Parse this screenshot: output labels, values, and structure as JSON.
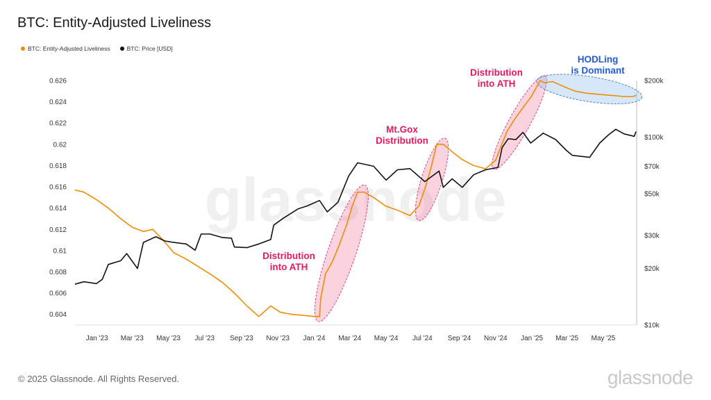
{
  "title": "BTC: Entity-Adjusted Liveliness",
  "legend": [
    {
      "label": "BTC: Entity-Adjusted Liveliness",
      "color": "#f08c00"
    },
    {
      "label": "BTC: Price [USD]",
      "color": "#111111"
    }
  ],
  "footer": {
    "copyright": "© 2025 Glassnode. All Rights Reserved.",
    "logo_text": "glassnode"
  },
  "watermark": "glassnode",
  "chart_data": {
    "type": "line",
    "x_tick_labels": [
      "Jan '23",
      "Mar '23",
      "May '23",
      "Jul '23",
      "Sep '23",
      "Nov '23",
      "Jan '24",
      "Mar '24",
      "May '24",
      "Jul '24",
      "Sep '24",
      "Nov '24",
      "Jan '25",
      "Mar '25",
      "May '25"
    ],
    "x_tick_dates": [
      "2023-01-01",
      "2023-03-01",
      "2023-05-01",
      "2023-07-01",
      "2023-09-01",
      "2023-11-01",
      "2024-01-01",
      "2024-03-01",
      "2024-05-01",
      "2024-07-01",
      "2024-09-01",
      "2024-11-01",
      "2025-01-01",
      "2025-03-01",
      "2025-05-01"
    ],
    "x_range": [
      "2022-11-25",
      "2025-06-25"
    ],
    "y_left": {
      "label": "",
      "ylim": [
        0.603,
        0.626
      ],
      "tick_values": [
        0.604,
        0.606,
        0.608,
        0.61,
        0.612,
        0.614,
        0.616,
        0.618,
        0.62,
        0.622,
        0.624,
        0.626
      ],
      "tick_labels": [
        "0.604",
        "0.606",
        "0.608",
        "0.61",
        "0.612",
        "0.614",
        "0.616",
        "0.618",
        "0.62",
        "0.622",
        "0.624",
        "0.626"
      ]
    },
    "y_right": {
      "label": "",
      "scale": "log",
      "ylim": [
        10000,
        200000
      ],
      "tick_values": [
        10000,
        20000,
        30000,
        50000,
        70000,
        100000,
        200000
      ],
      "tick_labels": [
        "$10k",
        "$20k",
        "$30k",
        "$50k",
        "$70k",
        "$100k",
        "$200k"
      ]
    },
    "series": [
      {
        "name": "BTC: Entity-Adjusted Liveliness",
        "axis": "left",
        "color": "#f08c00",
        "x": [
          "2022-11-25",
          "2022-12-10",
          "2022-12-31",
          "2023-01-20",
          "2023-02-10",
          "2023-03-01",
          "2023-03-20",
          "2023-04-05",
          "2023-04-25",
          "2023-05-10",
          "2023-05-31",
          "2023-06-20",
          "2023-07-10",
          "2023-07-31",
          "2023-08-20",
          "2023-09-10",
          "2023-09-30",
          "2023-10-20",
          "2023-11-05",
          "2023-11-25",
          "2023-12-15",
          "2024-01-01",
          "2024-01-10",
          "2024-01-12",
          "2024-01-20",
          "2024-02-01",
          "2024-02-12",
          "2024-02-25",
          "2024-03-05",
          "2024-03-14",
          "2024-03-25",
          "2024-04-10",
          "2024-04-30",
          "2024-05-20",
          "2024-06-10",
          "2024-06-25",
          "2024-07-05",
          "2024-07-15",
          "2024-07-25",
          "2024-08-05",
          "2024-08-20",
          "2024-09-05",
          "2024-09-25",
          "2024-10-15",
          "2024-11-01",
          "2024-11-10",
          "2024-11-20",
          "2024-12-01",
          "2024-12-15",
          "2024-12-31",
          "2025-01-15",
          "2025-01-22",
          "2025-02-05",
          "2025-02-25",
          "2025-03-15",
          "2025-04-05",
          "2025-04-25",
          "2025-05-15",
          "2025-06-05",
          "2025-06-20",
          "2025-06-25"
        ],
        "y": [
          0.6157,
          0.6155,
          0.6148,
          0.614,
          0.613,
          0.6122,
          0.6118,
          0.612,
          0.6108,
          0.6098,
          0.6092,
          0.6085,
          0.6078,
          0.607,
          0.606,
          0.6048,
          0.6038,
          0.6048,
          0.6042,
          0.604,
          0.6039,
          0.6038,
          0.6038,
          0.6055,
          0.6078,
          0.609,
          0.6105,
          0.6125,
          0.6142,
          0.6155,
          0.6155,
          0.615,
          0.6142,
          0.6138,
          0.6133,
          0.6142,
          0.6158,
          0.6177,
          0.62,
          0.62,
          0.6193,
          0.6186,
          0.618,
          0.6177,
          0.6185,
          0.6198,
          0.6212,
          0.6222,
          0.6233,
          0.6245,
          0.626,
          0.6258,
          0.6259,
          0.6254,
          0.625,
          0.6248,
          0.6247,
          0.6246,
          0.6245,
          0.6245,
          0.6246
        ]
      },
      {
        "name": "BTC: Price [USD]",
        "axis": "right",
        "color": "#111111",
        "x": [
          "2022-11-25",
          "2022-12-10",
          "2022-12-31",
          "2023-01-10",
          "2023-01-20",
          "2023-02-10",
          "2023-02-20",
          "2023-03-10",
          "2023-03-20",
          "2023-04-10",
          "2023-04-25",
          "2023-05-10",
          "2023-05-31",
          "2023-06-15",
          "2023-06-25",
          "2023-07-10",
          "2023-07-31",
          "2023-08-15",
          "2023-08-20",
          "2023-09-10",
          "2023-09-30",
          "2023-10-20",
          "2023-10-25",
          "2023-11-10",
          "2023-12-05",
          "2023-12-20",
          "2024-01-10",
          "2024-01-23",
          "2024-02-10",
          "2024-02-28",
          "2024-03-14",
          "2024-04-10",
          "2024-05-01",
          "2024-05-20",
          "2024-06-10",
          "2024-07-05",
          "2024-07-29",
          "2024-08-05",
          "2024-08-20",
          "2024-09-06",
          "2024-09-25",
          "2024-10-15",
          "2024-11-05",
          "2024-11-12",
          "2024-11-22",
          "2024-12-05",
          "2024-12-17",
          "2024-12-30",
          "2025-01-20",
          "2025-02-10",
          "2025-02-28",
          "2025-03-10",
          "2025-04-08",
          "2025-04-25",
          "2025-05-10",
          "2025-05-22",
          "2025-06-05",
          "2025-06-22",
          "2025-06-25"
        ],
        "y": [
          16500,
          17000,
          16600,
          17500,
          21000,
          22000,
          24000,
          20000,
          27500,
          29500,
          28000,
          27500,
          27000,
          25000,
          30500,
          30500,
          29200,
          29000,
          26000,
          25800,
          27000,
          28500,
          34000,
          37000,
          41500,
          43000,
          46000,
          40000,
          45000,
          62000,
          73000,
          70000,
          59000,
          67000,
          68000,
          58000,
          66000,
          54000,
          60000,
          54000,
          63000,
          67000,
          69000,
          88000,
          98000,
          97000,
          106000,
          93000,
          105000,
          97000,
          85000,
          80000,
          78000,
          93000,
          103000,
          110000,
          104000,
          101000,
          107000
        ]
      }
    ],
    "annotations": [
      {
        "text": "Distribution into ATH",
        "lines": [
          "Distribution",
          "into ATH"
        ],
        "color": "#e8195e"
      },
      {
        "text": "Mt.Gox Distribution",
        "lines": [
          "Mt.Gox",
          "Distribution"
        ],
        "color": "#e8195e"
      },
      {
        "text": "Distribution into ATH",
        "lines": [
          "Distribution",
          "into ATH"
        ],
        "color": "#e8195e"
      },
      {
        "text": "HODLing is Dominant",
        "lines": [
          "HODLing",
          "is Dominant"
        ],
        "color": "#1f5ae0"
      }
    ],
    "grid": false,
    "legend_position": "top-left"
  }
}
